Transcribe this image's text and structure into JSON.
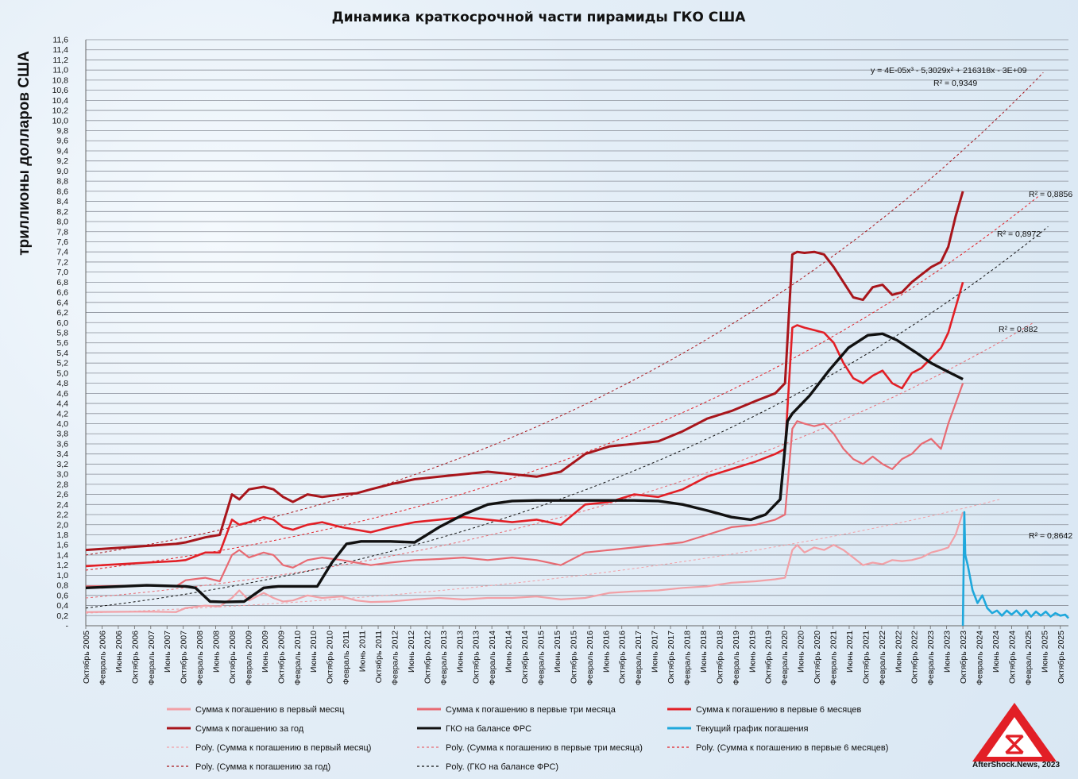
{
  "chart_data": {
    "type": "line",
    "title": "Динамика краткосрочной части пирамиды ГКО США",
    "ylabel": "триллионы долларов США",
    "ylim": [
      0,
      11.6
    ],
    "yticks": [
      "-",
      "0,2",
      "0,4",
      "0,6",
      "0,8",
      "1,0",
      "1,2",
      "1,4",
      "1,6",
      "1,8",
      "2,0",
      "2,2",
      "2,4",
      "2,6",
      "2,8",
      "3,0",
      "3,2",
      "3,4",
      "3,6",
      "3,8",
      "4,0",
      "4,2",
      "4,4",
      "4,6",
      "4,8",
      "5,0",
      "5,2",
      "5,4",
      "5,6",
      "5,8",
      "6,0",
      "6,2",
      "6,4",
      "6,6",
      "6,8",
      "7,0",
      "7,2",
      "7,4",
      "7,6",
      "7,8",
      "8,0",
      "8,2",
      "8,4",
      "8,6",
      "8,8",
      "9,0",
      "9,2",
      "9,4",
      "9,6",
      "9,8",
      "10,0",
      "10,2",
      "10,4",
      "10,6",
      "10,8",
      "11,0",
      "11,2",
      "11,4",
      "11,6"
    ],
    "xlim": [
      2005.75,
      2025.917
    ],
    "xticks": [
      "Октябрь 2005",
      "Февраль 2006",
      "Июнь 2006",
      "Октябрь 2006",
      "Февраль 2007",
      "Июнь 2007",
      "Октябрь 2007",
      "Февраль 2008",
      "Июнь 2008",
      "Октябрь 2008",
      "Февраль 2009",
      "Июнь 2009",
      "Октябрь 2009",
      "Февраль 2010",
      "Июнь 2010",
      "Октябрь 2010",
      "Февраль 2011",
      "Июнь 2011",
      "Октябрь 2011",
      "Февраль 2012",
      "Июнь 2012",
      "Октябрь 2012",
      "Февраль 2013",
      "Июнь 2013",
      "Октябрь 2013",
      "Февраль 2014",
      "Июнь 2014",
      "Октябрь 2014",
      "Февраль 2015",
      "Июнь 2015",
      "Октябрь 2015",
      "Февраль 2016",
      "Июнь 2016",
      "Октябрь 2016",
      "Февраль 2017",
      "Июнь 2017",
      "Октябрь 2017",
      "Февраль 2018",
      "Июнь 2018",
      "Октябрь 2018",
      "Февраль 2019",
      "Июнь 2019",
      "Октябрь 2019",
      "Февраль 2020",
      "Июнь 2020",
      "Октябрь 2020",
      "Февраль 2021",
      "Июнь 2021",
      "Октябрь 2021",
      "Февраль 2022",
      "Июнь 2022",
      "Октябрь 2022",
      "Февраль 2023",
      "Июнь 2023",
      "Октябрь 2023",
      "Февраль 2024",
      "Июнь 2024",
      "Октябрь 2024",
      "Февраль 2025",
      "Июнь 2025",
      "Октябрь 2025"
    ],
    "series": [
      {
        "name": "Сумма к погашению в первый месяц",
        "color": "#f2a0a6",
        "width": 2.2,
        "x": [
          2005.75,
          2007.0,
          2007.6,
          2007.8,
          2008.2,
          2008.5,
          2008.75,
          2008.9,
          2009.1,
          2009.4,
          2009.6,
          2009.8,
          2010.0,
          2010.3,
          2010.6,
          2011.0,
          2011.3,
          2011.6,
          2012.0,
          2012.5,
          2013.0,
          2013.5,
          2014.0,
          2014.5,
          2015.0,
          2015.5,
          2016.0,
          2016.5,
          2017.0,
          2017.5,
          2018.0,
          2018.5,
          2019.0,
          2019.5,
          2019.9,
          2020.1,
          2020.25,
          2020.35,
          2020.5,
          2020.7,
          2020.9,
          2021.1,
          2021.3,
          2021.5,
          2021.7,
          2021.9,
          2022.1,
          2022.3,
          2022.5,
          2022.7,
          2022.9,
          2023.1,
          2023.3,
          2023.45,
          2023.6,
          2023.75
        ],
        "y": [
          0.27,
          0.28,
          0.27,
          0.35,
          0.4,
          0.38,
          0.55,
          0.7,
          0.5,
          0.65,
          0.55,
          0.48,
          0.5,
          0.6,
          0.55,
          0.58,
          0.5,
          0.47,
          0.48,
          0.52,
          0.55,
          0.52,
          0.55,
          0.55,
          0.58,
          0.52,
          0.55,
          0.65,
          0.68,
          0.7,
          0.75,
          0.78,
          0.85,
          0.88,
          0.92,
          0.95,
          1.5,
          1.6,
          1.45,
          1.55,
          1.5,
          1.6,
          1.5,
          1.35,
          1.2,
          1.25,
          1.22,
          1.3,
          1.28,
          1.3,
          1.35,
          1.45,
          1.5,
          1.55,
          1.8,
          2.25
        ]
      },
      {
        "name": "Сумма к погашению в первые три месяца",
        "color": "#e86a72",
        "width": 2.2,
        "x": [
          2005.75,
          2007.0,
          2007.6,
          2007.8,
          2008.2,
          2008.5,
          2008.75,
          2008.9,
          2009.1,
          2009.4,
          2009.6,
          2009.8,
          2010.0,
          2010.3,
          2010.6,
          2011.0,
          2011.3,
          2011.6,
          2012.0,
          2012.5,
          2013.0,
          2013.5,
          2014.0,
          2014.5,
          2015.0,
          2015.5,
          2016.0,
          2016.5,
          2017.0,
          2017.5,
          2018.0,
          2018.5,
          2019.0,
          2019.5,
          2019.9,
          2020.1,
          2020.25,
          2020.35,
          2020.5,
          2020.7,
          2020.9,
          2021.1,
          2021.3,
          2021.5,
          2021.7,
          2021.9,
          2022.1,
          2022.3,
          2022.5,
          2022.7,
          2022.9,
          2023.1,
          2023.3,
          2023.45,
          2023.6,
          2023.75
        ],
        "y": [
          0.78,
          0.8,
          0.78,
          0.9,
          0.95,
          0.88,
          1.4,
          1.5,
          1.35,
          1.45,
          1.4,
          1.2,
          1.15,
          1.3,
          1.35,
          1.3,
          1.25,
          1.2,
          1.25,
          1.3,
          1.32,
          1.35,
          1.3,
          1.35,
          1.3,
          1.2,
          1.45,
          1.5,
          1.55,
          1.6,
          1.65,
          1.8,
          1.95,
          2.0,
          2.1,
          2.2,
          3.9,
          4.05,
          4.0,
          3.95,
          4.0,
          3.8,
          3.5,
          3.3,
          3.2,
          3.35,
          3.2,
          3.1,
          3.3,
          3.4,
          3.6,
          3.7,
          3.5,
          4.0,
          4.4,
          4.8
        ]
      },
      {
        "name": "Сумма к погашению в первые 6 месяцев",
        "color": "#e21f26",
        "width": 2.6,
        "x": [
          2005.75,
          2007.0,
          2007.6,
          2007.8,
          2008.2,
          2008.5,
          2008.75,
          2008.9,
          2009.1,
          2009.4,
          2009.6,
          2009.8,
          2010.0,
          2010.3,
          2010.6,
          2011.0,
          2011.3,
          2011.6,
          2012.0,
          2012.5,
          2013.0,
          2013.5,
          2014.0,
          2014.5,
          2015.0,
          2015.5,
          2016.0,
          2016.5,
          2017.0,
          2017.5,
          2018.0,
          2018.5,
          2019.0,
          2019.5,
          2019.9,
          2020.1,
          2020.25,
          2020.35,
          2020.5,
          2020.7,
          2020.9,
          2021.1,
          2021.3,
          2021.5,
          2021.7,
          2021.9,
          2022.1,
          2022.3,
          2022.5,
          2022.7,
          2022.9,
          2023.1,
          2023.3,
          2023.45,
          2023.6,
          2023.75
        ],
        "y": [
          1.18,
          1.25,
          1.28,
          1.3,
          1.45,
          1.45,
          2.1,
          2.0,
          2.05,
          2.15,
          2.1,
          1.95,
          1.9,
          2.0,
          2.05,
          1.95,
          1.9,
          1.85,
          1.95,
          2.05,
          2.1,
          2.15,
          2.1,
          2.05,
          2.1,
          2.0,
          2.4,
          2.45,
          2.6,
          2.55,
          2.7,
          2.95,
          3.1,
          3.25,
          3.4,
          3.5,
          5.9,
          5.95,
          5.9,
          5.85,
          5.8,
          5.6,
          5.2,
          4.9,
          4.8,
          4.95,
          5.05,
          4.8,
          4.7,
          5.0,
          5.1,
          5.3,
          5.5,
          5.8,
          6.3,
          6.8
        ]
      },
      {
        "name": "Сумма к погашению за год",
        "color": "#a8151b",
        "width": 3.0,
        "x": [
          2005.75,
          2007.0,
          2007.6,
          2007.8,
          2008.2,
          2008.5,
          2008.75,
          2008.9,
          2009.1,
          2009.4,
          2009.6,
          2009.8,
          2010.0,
          2010.3,
          2010.6,
          2011.0,
          2011.3,
          2011.6,
          2012.0,
          2012.5,
          2013.0,
          2013.5,
          2014.0,
          2014.5,
          2015.0,
          2015.5,
          2016.0,
          2016.5,
          2017.0,
          2017.5,
          2018.0,
          2018.5,
          2019.0,
          2019.5,
          2019.9,
          2020.1,
          2020.25,
          2020.35,
          2020.5,
          2020.7,
          2020.9,
          2021.1,
          2021.3,
          2021.5,
          2021.7,
          2021.9,
          2022.1,
          2022.3,
          2022.5,
          2022.7,
          2022.9,
          2023.1,
          2023.3,
          2023.45,
          2023.6,
          2023.75
        ],
        "y": [
          1.5,
          1.58,
          1.62,
          1.65,
          1.75,
          1.8,
          2.6,
          2.5,
          2.7,
          2.75,
          2.7,
          2.55,
          2.45,
          2.6,
          2.55,
          2.6,
          2.62,
          2.7,
          2.8,
          2.9,
          2.95,
          3.0,
          3.05,
          3.0,
          2.95,
          3.05,
          3.4,
          3.55,
          3.6,
          3.65,
          3.85,
          4.1,
          4.25,
          4.45,
          4.6,
          4.8,
          7.35,
          7.4,
          7.38,
          7.4,
          7.35,
          7.1,
          6.8,
          6.5,
          6.45,
          6.7,
          6.75,
          6.55,
          6.6,
          6.8,
          6.95,
          7.1,
          7.2,
          7.5,
          8.1,
          8.6
        ]
      },
      {
        "name": "ГКО на балансе ФРС",
        "color": "#111111",
        "width": 3.4,
        "x": [
          2005.75,
          2007.0,
          2007.8,
          2008.0,
          2008.3,
          2008.6,
          2009.0,
          2009.4,
          2009.7,
          2010.0,
          2010.5,
          2010.8,
          2011.1,
          2011.4,
          2011.7,
          2012.0,
          2012.5,
          2013.0,
          2013.5,
          2014.0,
          2014.5,
          2015.0,
          2015.5,
          2016.0,
          2016.5,
          2017.0,
          2017.5,
          2018.0,
          2018.5,
          2019.0,
          2019.4,
          2019.7,
          2020.0,
          2020.15,
          2020.25,
          2020.6,
          2021.0,
          2021.4,
          2021.8,
          2022.1,
          2022.4,
          2022.8,
          2023.1,
          2023.4,
          2023.75
        ],
        "y": [
          0.75,
          0.8,
          0.78,
          0.75,
          0.48,
          0.47,
          0.48,
          0.75,
          0.78,
          0.78,
          0.78,
          1.25,
          1.62,
          1.67,
          1.67,
          1.67,
          1.65,
          1.95,
          2.2,
          2.4,
          2.47,
          2.48,
          2.48,
          2.48,
          2.48,
          2.48,
          2.47,
          2.4,
          2.28,
          2.15,
          2.1,
          2.2,
          2.5,
          4.05,
          4.2,
          4.55,
          5.05,
          5.5,
          5.75,
          5.78,
          5.65,
          5.4,
          5.2,
          5.05,
          4.88
        ]
      },
      {
        "name": "Текущий график погашения",
        "color": "#1fa8dc",
        "width": 2.6,
        "x": [
          2023.75,
          2023.78,
          2023.8,
          2023.85,
          2023.95,
          2024.05,
          2024.15,
          2024.25,
          2024.35,
          2024.45,
          2024.55,
          2024.65,
          2024.75,
          2024.85,
          2024.95,
          2025.05,
          2025.15,
          2025.25,
          2025.35,
          2025.45,
          2025.55,
          2025.65,
          2025.75,
          2025.85,
          2025.917
        ],
        "y": [
          0.0,
          2.25,
          1.4,
          1.2,
          0.7,
          0.45,
          0.6,
          0.35,
          0.25,
          0.3,
          0.2,
          0.3,
          0.22,
          0.3,
          0.2,
          0.3,
          0.18,
          0.28,
          0.2,
          0.28,
          0.18,
          0.25,
          0.2,
          0.22,
          0.15
        ]
      }
    ],
    "trendlines": [
      {
        "name": "Poly. (Сумма к погашению в первый месяц)",
        "color": "#f2a0a6",
        "x0": 2005.75,
        "y0": 0.25,
        "x1": 2024.5,
        "y1": 2.5,
        "r2": "R² = 0,8642"
      },
      {
        "name": "Poly. (Сумма к погашению в первые три месяца)",
        "color": "#e86a72",
        "x0": 2005.75,
        "y0": 0.55,
        "x1": 2025.2,
        "y1": 6.0,
        "r2": "R² = 0,882"
      },
      {
        "name": "Poly. (Сумма к погашению в первые 6 месяцев)",
        "color": "#e21f26",
        "x0": 2005.75,
        "y0": 1.1,
        "x1": 2025.3,
        "y1": 8.5,
        "r2": "R² = 0,8856"
      },
      {
        "name": "Poly. (Сумма к погашению за год)",
        "color": "#a8151b",
        "x0": 2005.75,
        "y0": 1.4,
        "x1": 2025.4,
        "y1": 10.95,
        "r2": "R² = 0,9349"
      },
      {
        "name": "Poly. (ГКО на балансе ФРС)",
        "color": "#111111",
        "x0": 2005.75,
        "y0": 0.35,
        "x1": 2025.5,
        "y1": 7.9,
        "r2": "R² = 0,8972"
      }
    ],
    "equation": "y = 4E-05x³ - 5,3029x² + 216318x - 3E+09",
    "legend": "bottom",
    "grid": true,
    "watermark": "AfterShock.News, 2023"
  }
}
